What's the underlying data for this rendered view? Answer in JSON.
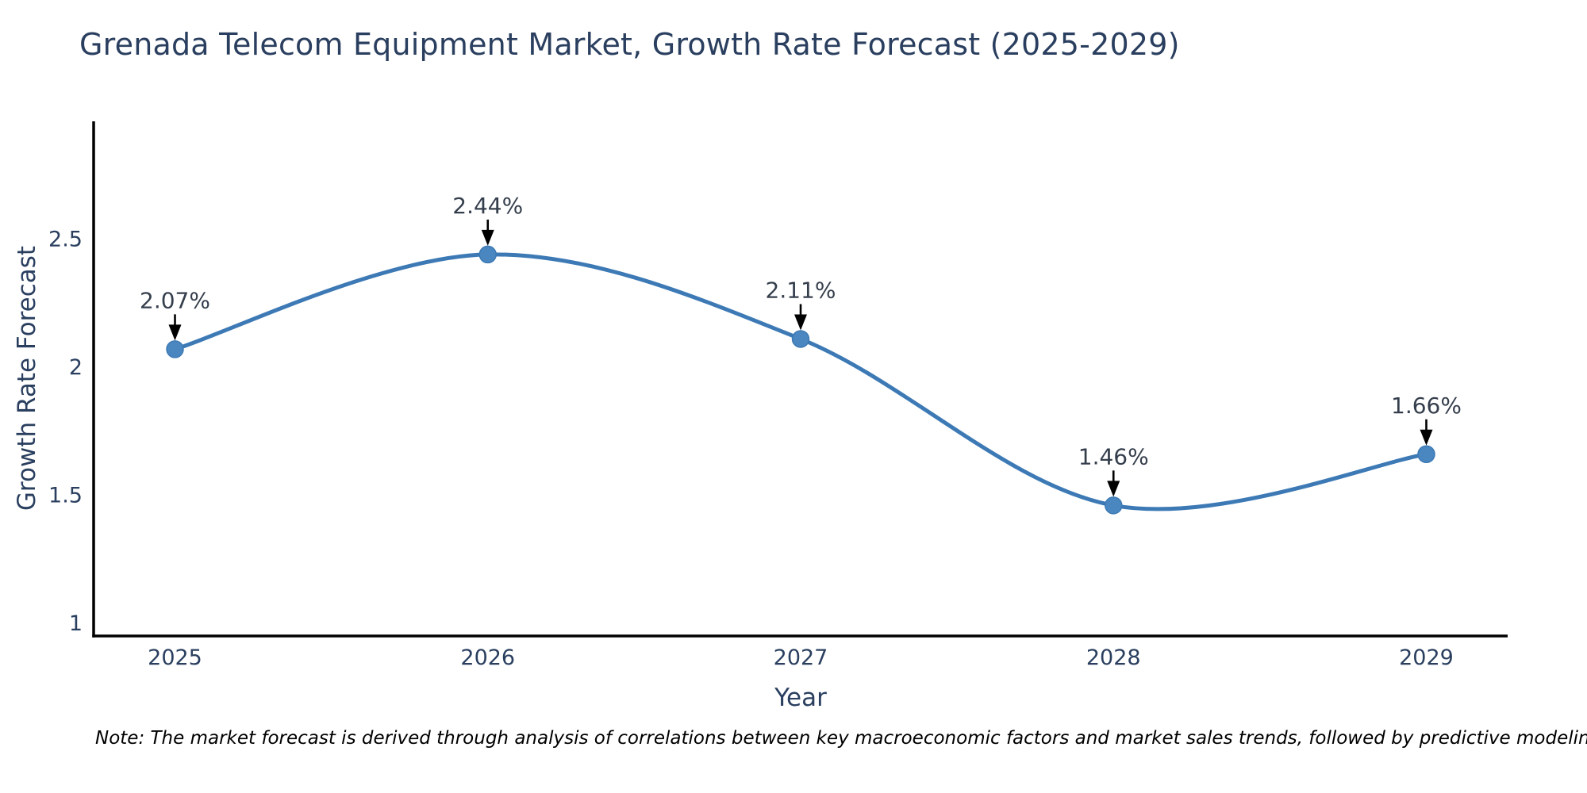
{
  "title": "Grenada Telecom Equipment Market, Growth Rate Forecast (2025-2029)",
  "footnote": "Note: The market forecast is derived through analysis of correlations between key macroeconomic factors and market sales trends, followed by predictive modeling to project future sales",
  "chart_data": {
    "type": "line",
    "line_shape": "spline",
    "title": "Grenada Telecom Equipment Market, Growth Rate Forecast (2025-2029)",
    "xlabel": "Year",
    "ylabel": "Growth Rate Forecast",
    "x": [
      2025,
      2026,
      2027,
      2028,
      2029
    ],
    "y": [
      2.07,
      2.44,
      2.11,
      1.46,
      1.66
    ],
    "point_labels": [
      "2.07%",
      "2.44%",
      "2.11%",
      "1.46%",
      "1.66%"
    ],
    "xtick_labels": [
      "2025",
      "2026",
      "2027",
      "2028",
      "2029"
    ],
    "xtick_values": [
      2025,
      2026,
      2027,
      2028,
      2029
    ],
    "ytick_labels": [
      "1",
      "1.5",
      "2",
      "2.5"
    ],
    "ytick_values": [
      1,
      1.5,
      2,
      2.5
    ],
    "xlim": [
      2024.74,
      2029.26
    ],
    "ylim": [
      0.95,
      2.96
    ],
    "grid": false,
    "legend": "none",
    "colors": {
      "line": "#3d7ab5",
      "marker": "#4a86bf",
      "text": "#2a3f5f",
      "axis_line": "#000000",
      "annotation_text": "#353e4c",
      "annotation_arrow": "#000000",
      "background": "#ffffff"
    }
  }
}
